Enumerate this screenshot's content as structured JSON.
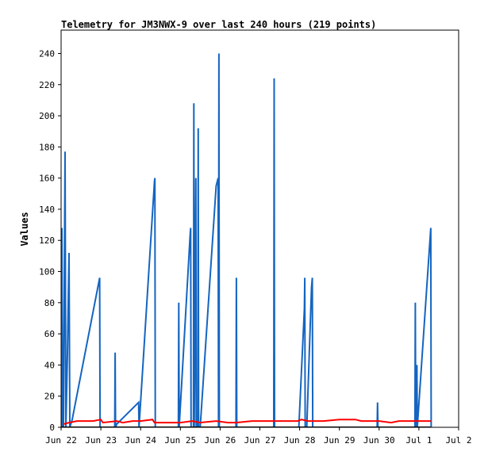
{
  "chart_data": {
    "type": "line",
    "title": "Telemetry for JM3NWX-9 over last 240 hours (219 points)",
    "xlabel": "",
    "ylabel": "Values",
    "xlim": [
      0,
      10
    ],
    "ylim": [
      0,
      255
    ],
    "x_ticks": [
      {
        "label": "Jun 22",
        "value": 0
      },
      {
        "label": "Jun 23",
        "value": 1
      },
      {
        "label": "Jun 24",
        "value": 2
      },
      {
        "label": "Jun 25",
        "value": 3
      },
      {
        "label": "Jun 26",
        "value": 4
      },
      {
        "label": "Jun 27",
        "value": 5
      },
      {
        "label": "Jun 28",
        "value": 6
      },
      {
        "label": "Jun 29",
        "value": 7
      },
      {
        "label": "Jun 30",
        "value": 8
      },
      {
        "label": "Jul 1",
        "value": 9
      },
      {
        "label": "Jul 2",
        "value": 10
      }
    ],
    "y_ticks": [
      0,
      20,
      40,
      60,
      80,
      100,
      120,
      140,
      160,
      180,
      200,
      220,
      240
    ],
    "grid": false,
    "series": [
      {
        "color": "#1565c0",
        "points": [
          [
            0.02,
            0
          ],
          [
            0.02,
            128
          ],
          [
            0.04,
            0
          ],
          [
            0.05,
            16
          ],
          [
            0.06,
            0
          ],
          [
            0.1,
            177
          ],
          [
            0.12,
            0
          ],
          [
            0.16,
            47
          ],
          [
            0.2,
            112
          ],
          [
            0.22,
            0
          ],
          [
            0.28,
            5
          ],
          [
            0.97,
            96
          ],
          [
            0.98,
            0
          ],
          [
            1.35,
            0
          ],
          [
            1.36,
            48
          ],
          [
            1.37,
            0
          ],
          [
            1.4,
            2
          ],
          [
            1.95,
            16
          ],
          [
            1.96,
            0
          ],
          [
            2.35,
            158
          ],
          [
            2.36,
            160
          ],
          [
            2.37,
            0
          ],
          [
            2.95,
            0
          ],
          [
            2.96,
            80
          ],
          [
            2.97,
            0
          ],
          [
            3.25,
            125
          ],
          [
            3.26,
            128
          ],
          [
            3.27,
            0
          ],
          [
            3.33,
            0
          ],
          [
            3.34,
            208
          ],
          [
            3.35,
            0
          ],
          [
            3.39,
            160
          ],
          [
            3.4,
            0
          ],
          [
            3.44,
            0
          ],
          [
            3.45,
            192
          ],
          [
            3.46,
            0
          ],
          [
            3.5,
            0
          ],
          [
            3.9,
            155
          ],
          [
            3.95,
            160
          ],
          [
            3.96,
            0
          ],
          [
            3.97,
            240
          ],
          [
            3.98,
            0
          ],
          [
            4.4,
            0
          ],
          [
            4.41,
            96
          ],
          [
            4.42,
            0
          ],
          [
            5.35,
            0
          ],
          [
            5.36,
            224
          ],
          [
            5.37,
            0
          ],
          [
            5.98,
            0
          ],
          [
            6.12,
            76
          ],
          [
            6.13,
            96
          ],
          [
            6.14,
            0
          ],
          [
            6.18,
            0
          ],
          [
            6.3,
            90
          ],
          [
            6.32,
            96
          ],
          [
            6.33,
            0
          ],
          [
            7.95,
            0
          ],
          [
            7.96,
            16
          ],
          [
            7.97,
            0
          ],
          [
            8.9,
            0
          ],
          [
            8.91,
            80
          ],
          [
            8.92,
            0
          ],
          [
            8.95,
            40
          ],
          [
            8.96,
            0
          ],
          [
            9.3,
            128
          ],
          [
            9.31,
            0
          ]
        ]
      },
      {
        "color": "#ff0000",
        "points": [
          [
            0.05,
            2
          ],
          [
            0.2,
            3
          ],
          [
            0.4,
            4
          ],
          [
            0.8,
            4
          ],
          [
            1.0,
            5
          ],
          [
            1.05,
            3
          ],
          [
            1.4,
            4
          ],
          [
            1.55,
            3
          ],
          [
            1.8,
            4
          ],
          [
            2.0,
            4
          ],
          [
            2.3,
            5
          ],
          [
            2.35,
            3
          ],
          [
            2.8,
            3
          ],
          [
            3.0,
            3
          ],
          [
            3.3,
            4
          ],
          [
            3.5,
            3
          ],
          [
            3.9,
            4
          ],
          [
            4.2,
            3
          ],
          [
            4.4,
            3
          ],
          [
            4.8,
            4
          ],
          [
            5.2,
            4
          ],
          [
            5.6,
            4
          ],
          [
            5.95,
            4
          ],
          [
            6.05,
            5
          ],
          [
            6.2,
            4
          ],
          [
            6.6,
            4
          ],
          [
            7.0,
            5
          ],
          [
            7.4,
            5
          ],
          [
            7.55,
            4
          ],
          [
            8.0,
            4
          ],
          [
            8.3,
            3
          ],
          [
            8.5,
            4
          ],
          [
            8.9,
            4
          ],
          [
            9.3,
            4
          ]
        ]
      },
      {
        "color": "#000000",
        "points": [
          [
            0.0,
            0
          ],
          [
            9.3,
            0
          ]
        ]
      }
    ]
  }
}
